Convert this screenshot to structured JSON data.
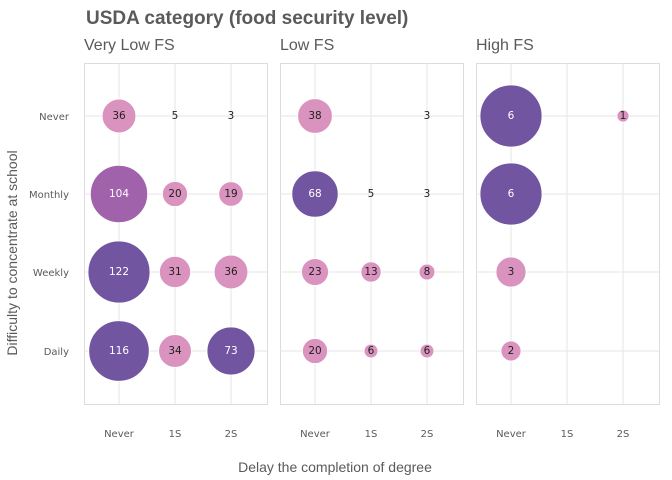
{
  "chart_data": {
    "type": "scatter",
    "title": "USDA category (food security level)",
    "xlabel": "Delay the completion of degree",
    "ylabel": "Difficulty to concentrate at school",
    "x_categories": [
      "Never",
      "1S",
      "2S"
    ],
    "y_categories": [
      "Never",
      "Monthly",
      "Weekly",
      "Daily"
    ],
    "grid": true,
    "legend": "none",
    "colors": {
      "high": "#6a4c9c",
      "mid": "#9c5aa8",
      "low": "#d88cbc",
      "text_dark": "#222222",
      "text_light": "#ffffff"
    },
    "facets": [
      {
        "name": "Very Low FS",
        "points": [
          {
            "x": "Never",
            "y": "Never",
            "value": 36
          },
          {
            "x": "1S",
            "y": "Never",
            "value": 5
          },
          {
            "x": "2S",
            "y": "Never",
            "value": 3
          },
          {
            "x": "Never",
            "y": "Monthly",
            "value": 104
          },
          {
            "x": "1S",
            "y": "Monthly",
            "value": 20
          },
          {
            "x": "2S",
            "y": "Monthly",
            "value": 19
          },
          {
            "x": "Never",
            "y": "Weekly",
            "value": 122
          },
          {
            "x": "1S",
            "y": "Weekly",
            "value": 31
          },
          {
            "x": "2S",
            "y": "Weekly",
            "value": 36
          },
          {
            "x": "Never",
            "y": "Daily",
            "value": 116
          },
          {
            "x": "1S",
            "y": "Daily",
            "value": 34
          },
          {
            "x": "2S",
            "y": "Daily",
            "value": 73
          }
        ]
      },
      {
        "name": "Low FS",
        "points": [
          {
            "x": "Never",
            "y": "Never",
            "value": 38
          },
          {
            "x": "2S",
            "y": "Never",
            "value": 3
          },
          {
            "x": "Never",
            "y": "Monthly",
            "value": 68
          },
          {
            "x": "1S",
            "y": "Monthly",
            "value": 5
          },
          {
            "x": "2S",
            "y": "Monthly",
            "value": 3
          },
          {
            "x": "Never",
            "y": "Weekly",
            "value": 23
          },
          {
            "x": "1S",
            "y": "Weekly",
            "value": 13
          },
          {
            "x": "2S",
            "y": "Weekly",
            "value": 8
          },
          {
            "x": "Never",
            "y": "Daily",
            "value": 20
          },
          {
            "x": "1S",
            "y": "Daily",
            "value": 6
          },
          {
            "x": "2S",
            "y": "Daily",
            "value": 6
          }
        ]
      },
      {
        "name": "High FS",
        "points": [
          {
            "x": "Never",
            "y": "Never",
            "value": 6
          },
          {
            "x": "2S",
            "y": "Never",
            "value": 1
          },
          {
            "x": "Never",
            "y": "Monthly",
            "value": 6
          },
          {
            "x": "Never",
            "y": "Weekly",
            "value": 3
          },
          {
            "x": "Never",
            "y": "Daily",
            "value": 2
          }
        ]
      }
    ]
  }
}
